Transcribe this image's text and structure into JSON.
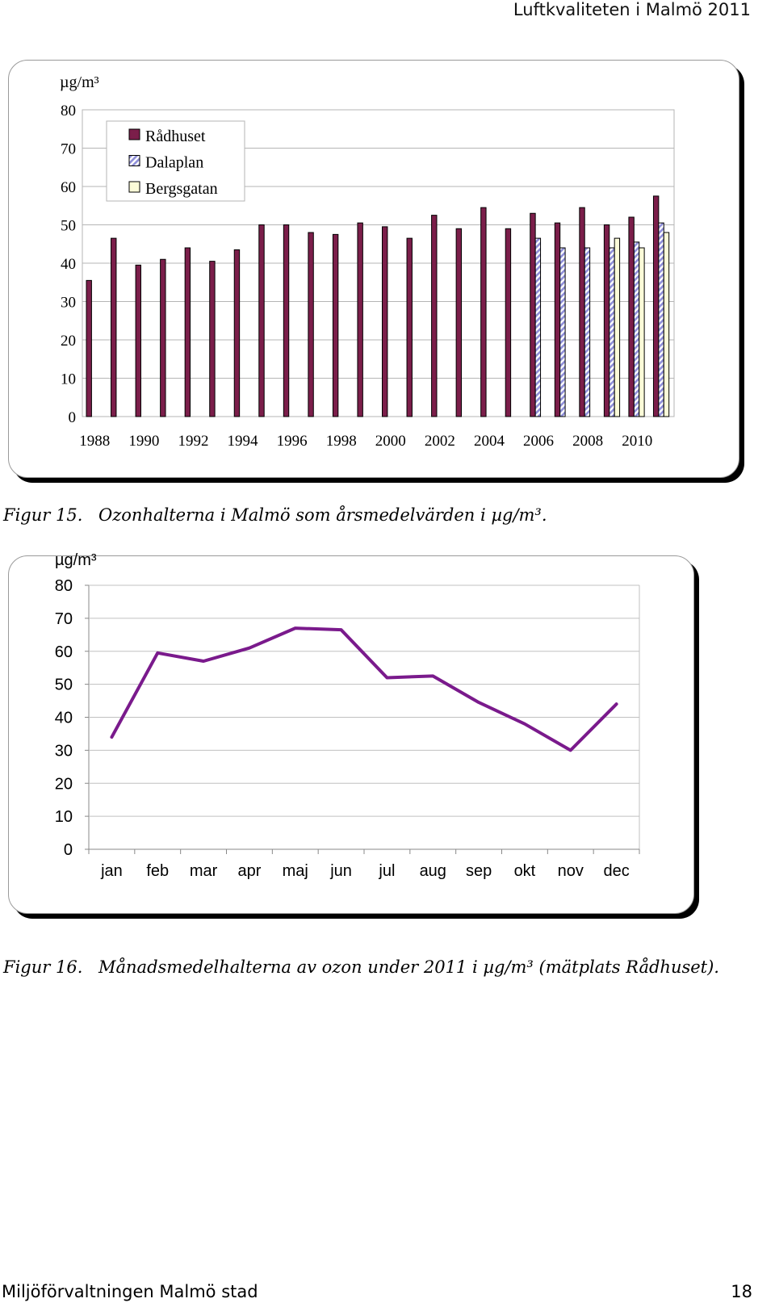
{
  "header": {
    "running_title": "Luftkvaliteten i Malmö 2011"
  },
  "figure15": {
    "label": "Figur 15.",
    "caption": "Ozonhalterna i Malmö som årsmedelvärden i µg/m³.",
    "colors": {
      "radhuset": "#7b1e4a",
      "dalaplan": "#8e8ed8",
      "bergsgatan": "#fbfbd8"
    },
    "chart_data": {
      "type": "bar",
      "unit_label": "µg/m³",
      "ylim": [
        0,
        80
      ],
      "yticks": [
        "0",
        "10",
        "20",
        "30",
        "40",
        "50",
        "60",
        "70",
        "80"
      ],
      "grid": true,
      "legend_position": "top-left",
      "categories": [
        "1988",
        "1989",
        "1990",
        "1991",
        "1992",
        "1993",
        "1994",
        "1995",
        "1996",
        "1997",
        "1998",
        "1999",
        "2000",
        "2001",
        "2002",
        "2003",
        "2004",
        "2005",
        "2006",
        "2007",
        "2008",
        "2009",
        "2010",
        "2011"
      ],
      "xtick_labels": [
        "1988",
        "1990",
        "1992",
        "1994",
        "1996",
        "1998",
        "2000",
        "2002",
        "2004",
        "2006",
        "2008",
        "2010"
      ],
      "series": [
        {
          "name": "Rådhuset",
          "values": [
            35.5,
            46.5,
            39.5,
            41,
            44,
            40.5,
            43.5,
            50,
            50,
            48,
            47.5,
            50.5,
            49.5,
            46.5,
            52.5,
            49,
            54.5,
            49,
            53,
            50.5,
            54.5,
            50,
            52,
            57.5
          ]
        },
        {
          "name": "Dalaplan",
          "values": [
            null,
            null,
            null,
            null,
            null,
            null,
            null,
            null,
            null,
            null,
            null,
            null,
            null,
            null,
            null,
            null,
            null,
            null,
            46.5,
            44,
            44,
            44,
            45.5,
            50.5
          ]
        },
        {
          "name": "Bergsgatan",
          "values": [
            null,
            null,
            null,
            null,
            null,
            null,
            null,
            null,
            null,
            null,
            null,
            null,
            null,
            null,
            null,
            null,
            null,
            null,
            null,
            null,
            null,
            46.5,
            44,
            48
          ]
        }
      ]
    }
  },
  "figure16": {
    "label": "Figur 16.",
    "caption": "Månadsmedelhalterna av ozon under 2011 i µg/m³ (mätplats Rådhuset).",
    "colors": {
      "line": "#7a1a8c"
    },
    "chart_data": {
      "type": "line",
      "unit_label": "µg/m³",
      "ylim": [
        0,
        80
      ],
      "yticks": [
        "0",
        "10",
        "20",
        "30",
        "40",
        "50",
        "60",
        "70",
        "80"
      ],
      "grid": true,
      "categories": [
        "jan",
        "feb",
        "mar",
        "apr",
        "maj",
        "jun",
        "jul",
        "aug",
        "sep",
        "okt",
        "nov",
        "dec"
      ],
      "values": [
        34,
        59.5,
        57,
        61,
        67,
        66.5,
        52,
        52.5,
        44.5,
        38,
        30,
        44
      ]
    }
  },
  "footer": {
    "left": "Miljöförvaltningen Malmö stad",
    "page_number": "18"
  }
}
